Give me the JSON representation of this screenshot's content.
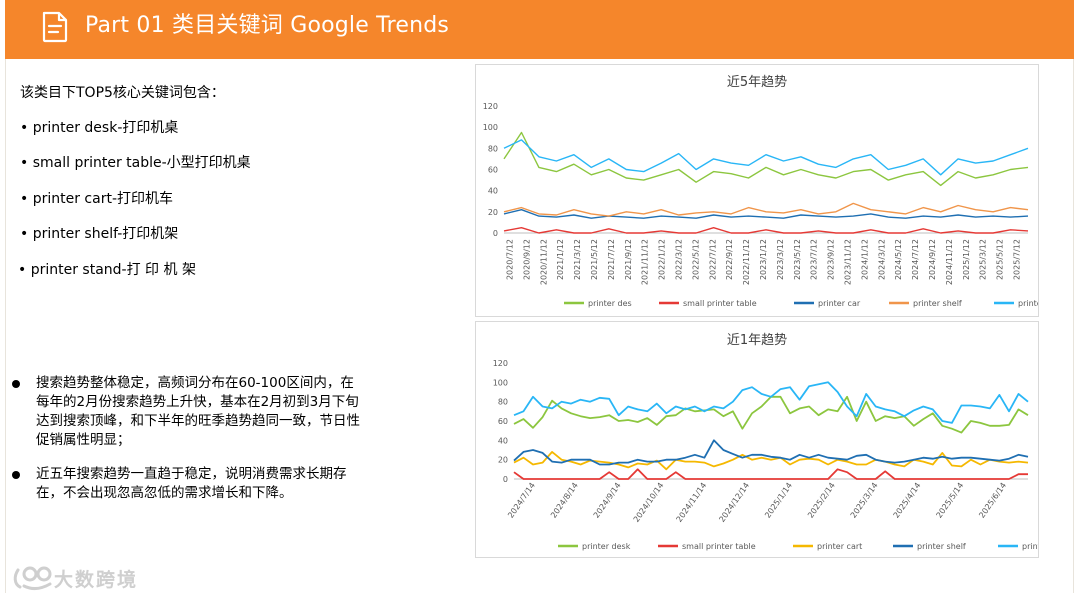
{
  "header": {
    "title": "Part 01 类目关键词 Google Trends",
    "icon": "document-icon",
    "color": "#f5862b"
  },
  "intro": "该类目下TOP5核心关键词包含：",
  "keywords": [
    "• printer desk-打印机桌",
    "• small printer table-小型打印机桌",
    "• printer cart-打印机车",
    "• printer shelf-打印机架",
    "• printer stand-打 印 机 架"
  ],
  "bullets": [
    "搜索趋势整体稳定，高频词分布在60-100区间内，在每年的2月份搜索趋势上升快，基本在2月初到3月下旬达到搜索顶峰，和下半年的旺季趋势趋同一致，节日性促销属性明显；",
    "近五年搜索趋势一直趋于稳定，说明消费需求长期存在，不会出现忽高忽低的需求增长和下降。"
  ],
  "logo": {
    "text": "大数跨境",
    "icon": "logo-icon"
  },
  "chart_data": [
    {
      "type": "line",
      "title": "近5年趋势",
      "ylim": [
        0,
        120
      ],
      "yticks": [
        0,
        20,
        40,
        60,
        80,
        100,
        120
      ],
      "grid": false,
      "legend_position": "bottom",
      "x_tick_labels": [
        "2020/7/12",
        "2020/9/12",
        "2020/11/12",
        "2021/1/12",
        "2021/3/12",
        "2021/5/12",
        "2021/7/12",
        "2021/9/12",
        "2021/11/12",
        "2022/1/12",
        "2022/3/12",
        "2022/5/12",
        "2022/7/12",
        "2022/9/12",
        "2022/11/12",
        "2023/1/12",
        "2023/3/12",
        "2023/5/12",
        "2023/7/12",
        "2023/9/12",
        "2023/11/12",
        "2024/1/12",
        "2024/3/12",
        "2024/5/12",
        "2024/7/12",
        "2024/9/12",
        "2024/11/12",
        "2025/1/12",
        "2025/3/12",
        "2025/5/12",
        "2025/7/12"
      ],
      "series": [
        {
          "name": "printer des",
          "color": "#8cc63f",
          "values": [
            70,
            95,
            62,
            58,
            65,
            55,
            60,
            52,
            50,
            55,
            60,
            48,
            58,
            56,
            52,
            62,
            55,
            60,
            55,
            52,
            58,
            60,
            50,
            55,
            58,
            45,
            58,
            52,
            55,
            60,
            62
          ]
        },
        {
          "name": "small printer table",
          "color": "#e53935",
          "values": [
            2,
            5,
            0,
            3,
            0,
            0,
            4,
            0,
            0,
            2,
            0,
            0,
            5,
            0,
            0,
            3,
            0,
            0,
            2,
            0,
            0,
            3,
            0,
            0,
            4,
            0,
            2,
            0,
            0,
            3,
            2
          ]
        },
        {
          "name": "printer car",
          "color": "#1f6fb2",
          "values": [
            18,
            22,
            16,
            15,
            17,
            14,
            16,
            15,
            14,
            16,
            15,
            14,
            17,
            15,
            16,
            15,
            14,
            17,
            16,
            15,
            16,
            18,
            15,
            14,
            16,
            15,
            17,
            15,
            16,
            15,
            16
          ]
        },
        {
          "name": "printer shelf",
          "color": "#f0954a",
          "values": [
            20,
            24,
            18,
            17,
            22,
            18,
            16,
            20,
            18,
            22,
            17,
            19,
            20,
            18,
            24,
            20,
            19,
            22,
            18,
            20,
            28,
            22,
            20,
            18,
            24,
            20,
            26,
            22,
            20,
            24,
            22
          ]
        },
        {
          "name": "printer stand",
          "color": "#29b6f6",
          "values": [
            80,
            88,
            72,
            68,
            74,
            62,
            70,
            60,
            58,
            66,
            75,
            60,
            70,
            66,
            64,
            74,
            68,
            72,
            65,
            62,
            70,
            74,
            60,
            64,
            70,
            55,
            70,
            66,
            68,
            74,
            80
          ]
        }
      ]
    },
    {
      "type": "line",
      "title": "近1年趋势",
      "ylim": [
        0,
        120
      ],
      "yticks": [
        0,
        20,
        40,
        60,
        80,
        100,
        120
      ],
      "grid": false,
      "legend_position": "bottom",
      "x_tick_labels": [
        "2024/7/14",
        "2024/8/14",
        "2024/9/14",
        "2024/10/14",
        "2024/11/14",
        "2024/12/14",
        "2025/1/14",
        "2025/2/14",
        "2025/3/14",
        "2025/4/14",
        "2025/5/14",
        "2025/6/14"
      ],
      "series": [
        {
          "name": "printer desk",
          "color": "#8cc63f",
          "values": [
            57,
            62,
            53,
            64,
            81,
            73,
            68,
            65,
            63,
            64,
            66,
            60,
            61,
            59,
            63,
            56,
            65,
            66,
            73,
            70,
            71,
            72,
            65,
            70,
            52,
            68,
            75,
            85,
            85,
            68,
            73,
            75,
            66,
            72,
            70,
            85,
            60,
            80,
            60,
            65,
            63,
            65,
            55,
            62,
            68,
            55,
            52,
            48,
            60,
            58,
            55,
            55,
            56,
            72,
            66
          ]
        },
        {
          "name": "small printer table",
          "color": "#e53935",
          "values": [
            7,
            0,
            0,
            0,
            0,
            0,
            0,
            0,
            0,
            0,
            7,
            0,
            0,
            10,
            0,
            0,
            0,
            7,
            0,
            0,
            0,
            0,
            0,
            0,
            0,
            0,
            0,
            0,
            0,
            0,
            0,
            0,
            0,
            0,
            10,
            7,
            0,
            0,
            0,
            8,
            0,
            0,
            0,
            0,
            0,
            0,
            0,
            0,
            0,
            0,
            0,
            0,
            0,
            5,
            5
          ]
        },
        {
          "name": "printer cart",
          "color": "#f5b800",
          "values": [
            17,
            22,
            15,
            17,
            28,
            20,
            18,
            15,
            19,
            18,
            17,
            15,
            12,
            16,
            15,
            19,
            10,
            20,
            18,
            18,
            17,
            13,
            16,
            20,
            25,
            20,
            22,
            20,
            22,
            15,
            20,
            21,
            20,
            15,
            20,
            18,
            15,
            15,
            20,
            18,
            15,
            13,
            20,
            18,
            15,
            27,
            14,
            13,
            20,
            15,
            20,
            18,
            17,
            18,
            17
          ]
        },
        {
          "name": "printer shelf",
          "color": "#1f6fb2",
          "values": [
            19,
            28,
            30,
            27,
            18,
            17,
            20,
            20,
            20,
            15,
            15,
            17,
            17,
            20,
            18,
            18,
            20,
            20,
            22,
            25,
            22,
            40,
            30,
            26,
            22,
            25,
            25,
            23,
            22,
            20,
            25,
            22,
            25,
            22,
            21,
            20,
            24,
            25,
            20,
            18,
            17,
            18,
            20,
            22,
            21,
            23,
            21,
            22,
            22,
            21,
            20,
            19,
            21,
            25,
            23
          ]
        },
        {
          "name": "printer stand",
          "color": "#29b6f6",
          "values": [
            66,
            70,
            85,
            75,
            73,
            80,
            78,
            82,
            80,
            84,
            83,
            66,
            75,
            72,
            70,
            78,
            68,
            75,
            72,
            75,
            70,
            75,
            73,
            80,
            92,
            95,
            88,
            85,
            93,
            95,
            82,
            96,
            98,
            100,
            90,
            75,
            65,
            88,
            75,
            72,
            70,
            65,
            71,
            75,
            72,
            60,
            58,
            76,
            76,
            75,
            73,
            87,
            70,
            88,
            80
          ]
        }
      ]
    }
  ]
}
